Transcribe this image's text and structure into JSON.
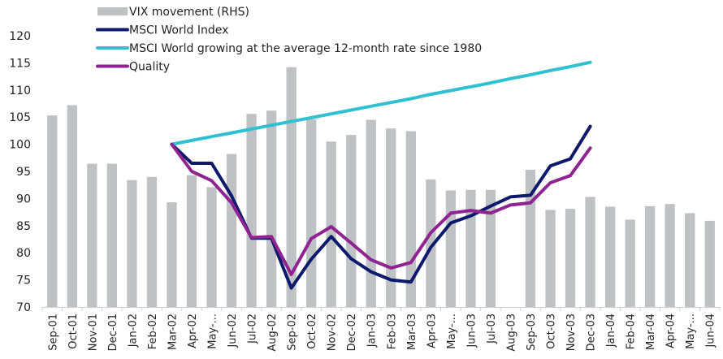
{
  "chart_data": {
    "type": "bar+line",
    "title": "",
    "xlabel": "",
    "ylabel": "",
    "ylim": [
      70,
      120
    ],
    "yticks": [
      70,
      75,
      80,
      85,
      90,
      95,
      100,
      105,
      110,
      115,
      120
    ],
    "grid": false,
    "legend_position": "top-left",
    "categories": [
      "Sep-01",
      "Oct-01",
      "Nov-01",
      "Dec-01",
      "Jan-02",
      "Feb-02",
      "Mar-02",
      "Apr-02",
      "May-...",
      "Jun-02",
      "Jul-02",
      "Aug-02",
      "Sep-02",
      "Oct-02",
      "Nov-02",
      "Dec-02",
      "Jan-03",
      "Feb-03",
      "Mar-03",
      "Apr-03",
      "May-...",
      "Jun-03",
      "Jul-03",
      "Aug-03",
      "Sep-03",
      "Oct-03",
      "Nov-03",
      "Dec-03",
      "Jan-04",
      "Feb-04",
      "Mar-04",
      "Apr-04",
      "May-...",
      "Jun-04"
    ],
    "series": [
      {
        "name": "VIX movement (RHS)",
        "type": "bar",
        "color": "#bfc2c4",
        "values": [
          105.3,
          107.2,
          96.4,
          96.4,
          93.4,
          94.0,
          89.3,
          94.3,
          92.1,
          98.2,
          105.6,
          106.2,
          114.2,
          104.6,
          100.5,
          101.7,
          104.5,
          102.9,
          102.4,
          93.5,
          91.5,
          91.6,
          91.6,
          null,
          95.3,
          87.9,
          88.1,
          90.3,
          88.5,
          86.1,
          88.6,
          89.0,
          87.3,
          85.9
        ]
      },
      {
        "name": "MSCI World Index",
        "type": "line",
        "color": "#0d1a6b",
        "values": [
          null,
          null,
          null,
          null,
          null,
          null,
          100.0,
          96.5,
          96.5,
          90.5,
          82.7,
          82.7,
          73.5,
          78.8,
          83.0,
          78.9,
          76.5,
          75.0,
          74.6,
          81.0,
          85.5,
          86.8,
          88.6,
          90.3,
          90.6,
          96.0,
          97.3,
          103.3,
          null,
          null,
          null,
          null,
          null,
          null
        ]
      },
      {
        "name": "MSCI World growing at the average 12-month rate since 1980",
        "type": "line",
        "color": "#30c0d0",
        "values": [
          null,
          null,
          null,
          null,
          null,
          null,
          100.0,
          100.7,
          101.4,
          102.1,
          102.8,
          103.5,
          104.2,
          104.9,
          105.6,
          106.3,
          107.0,
          107.7,
          108.4,
          109.2,
          109.9,
          110.6,
          111.3,
          112.1,
          112.8,
          113.6,
          114.3,
          115.1,
          null,
          null,
          null,
          null,
          null,
          null
        ]
      },
      {
        "name": "Quality",
        "type": "line",
        "color": "#8e2391",
        "values": [
          null,
          null,
          null,
          null,
          null,
          null,
          100.0,
          95.0,
          93.3,
          89.2,
          82.8,
          83.0,
          76.0,
          82.6,
          84.8,
          81.8,
          78.7,
          77.2,
          78.2,
          83.7,
          87.3,
          87.8,
          87.3,
          88.8,
          89.2,
          92.9,
          94.2,
          99.3,
          null,
          null,
          null,
          null,
          null,
          null
        ]
      }
    ]
  }
}
